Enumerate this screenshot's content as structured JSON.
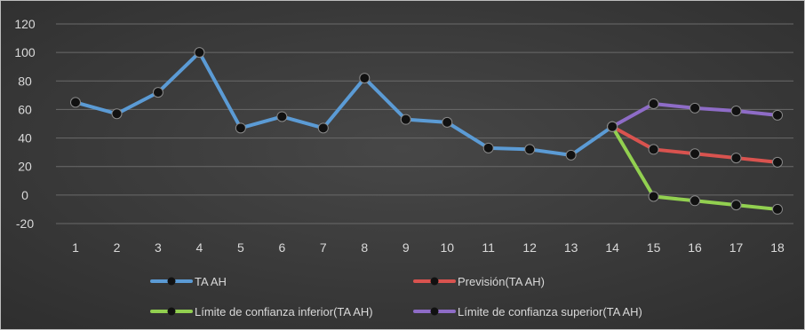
{
  "chart_data": {
    "type": "line",
    "title": "",
    "xlabel": "",
    "ylabel": "",
    "categories": [
      "1",
      "2",
      "3",
      "4",
      "5",
      "6",
      "7",
      "8",
      "9",
      "10",
      "11",
      "12",
      "13",
      "14",
      "15",
      "16",
      "17",
      "18"
    ],
    "y_ticks": [
      "120",
      "100",
      "80",
      "60",
      "40",
      "20",
      "0",
      "-20"
    ],
    "ylim": [
      -20,
      120
    ],
    "grid": true,
    "legend_position": "bottom",
    "series": [
      {
        "name": "TA AH",
        "color": "#5b9bd5",
        "points": [
          [
            1,
            65
          ],
          [
            2,
            57
          ],
          [
            3,
            72
          ],
          [
            4,
            100
          ],
          [
            5,
            47
          ],
          [
            6,
            55
          ],
          [
            7,
            47
          ],
          [
            8,
            82
          ],
          [
            9,
            53
          ],
          [
            10,
            51
          ],
          [
            11,
            33
          ],
          [
            12,
            32
          ],
          [
            13,
            28
          ],
          [
            14,
            48
          ]
        ]
      },
      {
        "name": "Previsión(TA AH)",
        "color": "#d9534f",
        "points": [
          [
            14,
            48
          ],
          [
            15,
            32
          ],
          [
            16,
            29
          ],
          [
            17,
            26
          ],
          [
            18,
            23
          ]
        ]
      },
      {
        "name": "Límite de confianza inferior(TA AH)",
        "color": "#92d050",
        "points": [
          [
            14,
            48
          ],
          [
            15,
            -1
          ],
          [
            16,
            -4
          ],
          [
            17,
            -7
          ],
          [
            18,
            -10
          ]
        ]
      },
      {
        "name": "Límite de confianza superior(TA AH)",
        "color": "#8e6cc7",
        "points": [
          [
            14,
            48
          ],
          [
            15,
            64
          ],
          [
            16,
            61
          ],
          [
            17,
            59
          ],
          [
            18,
            56
          ]
        ]
      }
    ]
  },
  "colors": {
    "background": "#3c3c3c",
    "gridline": "#6a6a6a",
    "text": "#d9d9d9",
    "marker": "#111111"
  }
}
